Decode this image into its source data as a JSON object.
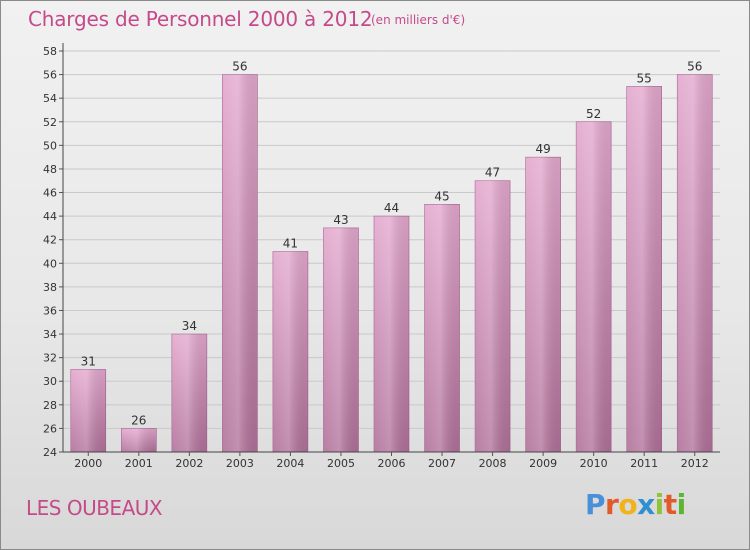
{
  "header": {
    "title": "Charges de Personnel 2000 à 2012",
    "subtitle": "(en milliers d'€)"
  },
  "footer": {
    "commune": "LES OUBEAUX",
    "brand_letters": [
      "P",
      "r",
      "o",
      "x",
      "i",
      "t",
      "i"
    ]
  },
  "colors": {
    "bar_top": "#e3a7cd",
    "bar_bottom": "#b07099",
    "title": "#c54a8a",
    "brand": [
      "#4a90d9",
      "#e05a2a",
      "#f2b21a",
      "#2f8fd0",
      "#8fc43a",
      "#e05a2a",
      "#5bb531"
    ]
  },
  "chart_data": {
    "type": "bar",
    "categories": [
      "2000",
      "2001",
      "2002",
      "2003",
      "2004",
      "2005",
      "2006",
      "2007",
      "2008",
      "2009",
      "2010",
      "2011",
      "2012"
    ],
    "values": [
      31,
      26,
      34,
      56,
      41,
      43,
      44,
      45,
      47,
      49,
      52,
      55,
      56
    ],
    "data_labels": [
      "31",
      "26",
      "34",
      "56",
      "41",
      "43",
      "44",
      "45",
      "47",
      "49",
      "52",
      "55",
      "56"
    ],
    "yticks": [
      "24",
      "26",
      "28",
      "30",
      "32",
      "34",
      "36",
      "38",
      "40",
      "42",
      "44",
      "46",
      "48",
      "50",
      "52",
      "54",
      "56",
      "58"
    ],
    "ylim": [
      24,
      58
    ],
    "grid": true,
    "legend": "none"
  }
}
